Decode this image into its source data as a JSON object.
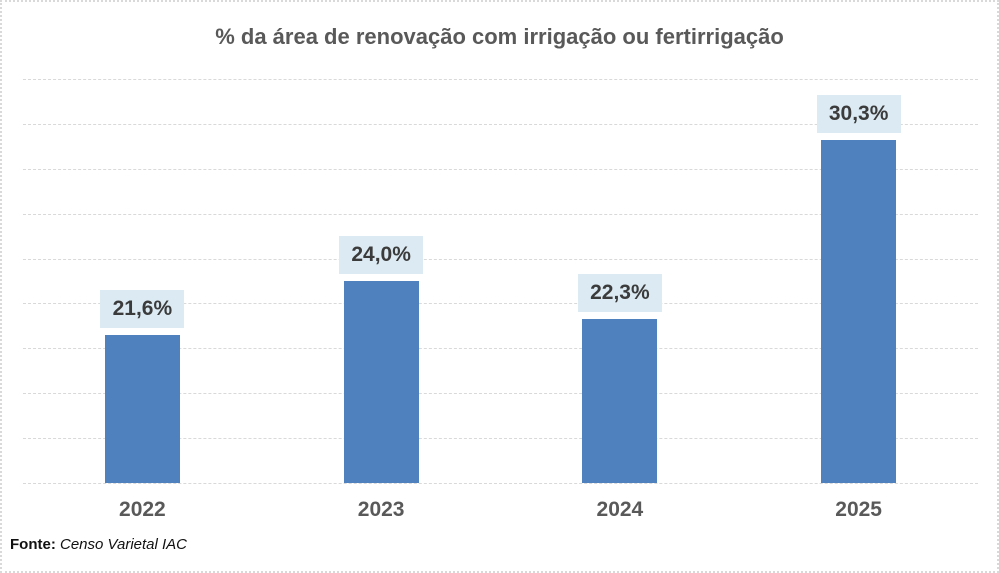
{
  "title": "% da área de renovação com irrigação ou fertirrigação",
  "source": {
    "prefix": "Fonte: ",
    "text": "Censo Varietal IAC"
  },
  "chart_data": {
    "type": "bar",
    "title": "% da área de renovação com irrigação ou fertirrigação",
    "categories": [
      "2022",
      "2023",
      "2024",
      "2025"
    ],
    "values": [
      21.6,
      24.0,
      22.3,
      30.3
    ],
    "data_labels": [
      "21,6%",
      "24,0%",
      "22,3%",
      "30,3%"
    ],
    "xlabel": "",
    "ylabel": "",
    "ylim": [
      15,
      33
    ],
    "grid_step": 2,
    "grid": "on",
    "legend": "none",
    "y_axis_labels_visible": false,
    "colors": {
      "bar": "#4e81bd",
      "data_label_background": "#dcebf3",
      "data_label_text": "#3b3b3b",
      "axis_text": "#595959",
      "title_text": "#595959",
      "gridline": "#d9d9d9",
      "chart_border": "#d9d9d9",
      "source_text": "#111111"
    }
  }
}
